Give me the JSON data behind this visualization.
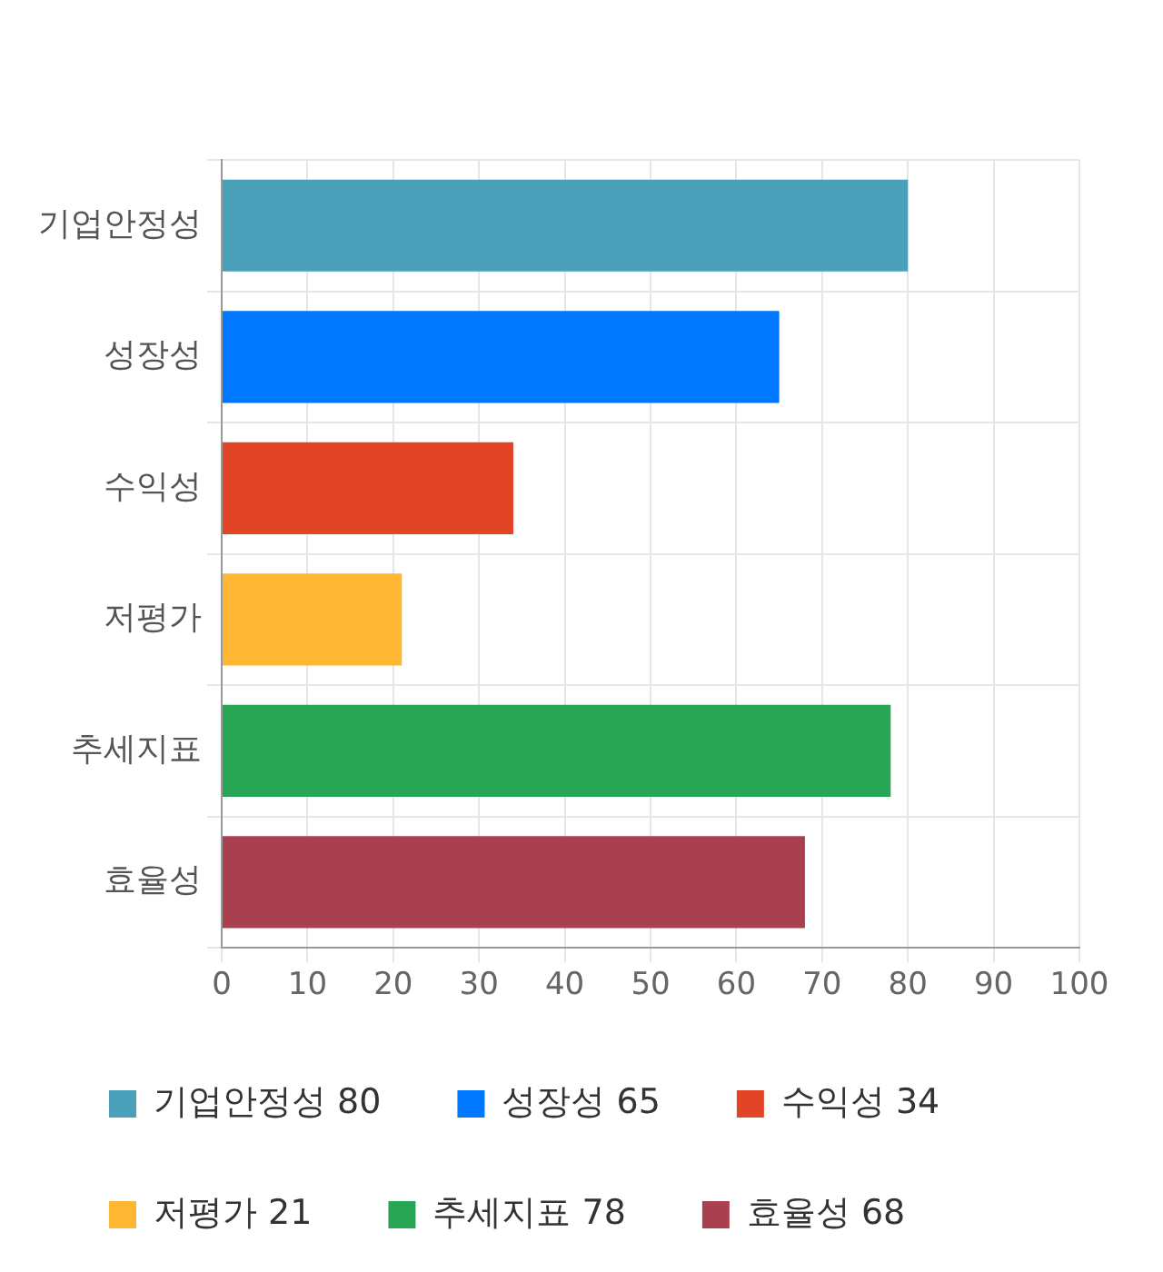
{
  "chart_data": {
    "type": "bar",
    "orientation": "horizontal",
    "stacked": true,
    "categories": [
      "기업안정성",
      "성장성",
      "수익성",
      "저평가",
      "추세지표",
      "효율성"
    ],
    "series": [
      {
        "name": "기업안정성 80",
        "color": "#4aa0b9",
        "values": [
          80,
          null,
          null,
          null,
          null,
          null
        ]
      },
      {
        "name": "성장성 65",
        "color": "#0077ff",
        "values": [
          null,
          65,
          null,
          null,
          null,
          null
        ]
      },
      {
        "name": "수익성 34",
        "color": "#e24525",
        "values": [
          null,
          null,
          34,
          null,
          null,
          null
        ]
      },
      {
        "name": "저평가 21",
        "color": "#ffb733",
        "values": [
          null,
          null,
          null,
          21,
          null,
          null
        ]
      },
      {
        "name": "추세지표 78",
        "color": "#28a555",
        "values": [
          null,
          null,
          null,
          null,
          78,
          null
        ]
      },
      {
        "name": "효율성 68",
        "color": "#a8404f",
        "values": [
          null,
          null,
          null,
          null,
          null,
          68
        ]
      }
    ],
    "xlim": [
      0,
      100
    ],
    "xticks": [
      0,
      10,
      20,
      30,
      40,
      50,
      60,
      70,
      80,
      90,
      100
    ],
    "grid": true,
    "legend": "bottom"
  }
}
